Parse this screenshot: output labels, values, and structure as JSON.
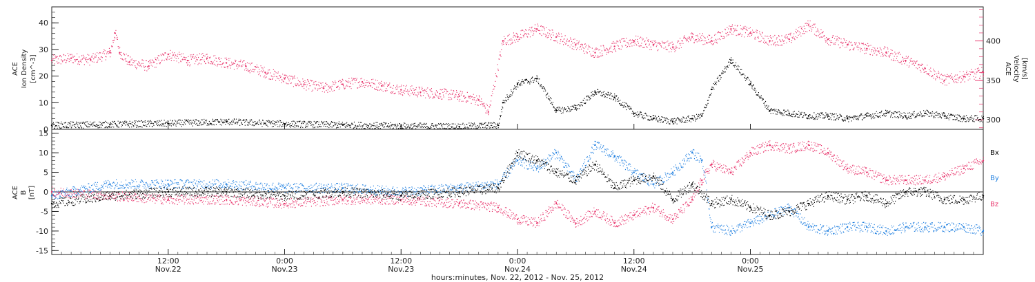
{
  "chart_data": [
    {
      "type": "scatter",
      "panel": "top",
      "ylabel_left": [
        "ACE",
        "Ion Density",
        "[cm^-3]"
      ],
      "ylabel_right": [
        "ACE",
        "Velocity",
        "[km/s]"
      ],
      "ylim_left": [
        0,
        46
      ],
      "ylim_right": [
        288,
        443
      ],
      "yticks_left": [
        "0",
        "10",
        "20",
        "30",
        "40"
      ],
      "yticks_right": [
        "300",
        "350",
        "400"
      ],
      "xlim_hours": [
        0,
        96
      ],
      "series": [
        {
          "axis": "left",
          "color": "#000000",
          "x": [
            0,
            6,
            12,
            18,
            24,
            30,
            36,
            42,
            46,
            46.5,
            48,
            50,
            52,
            54,
            56,
            58,
            60,
            62,
            64,
            66,
            67,
            68,
            70,
            72,
            74,
            76,
            78,
            80,
            82,
            84,
            86,
            88,
            90,
            92,
            94,
            96
          ],
          "values": [
            1.5,
            1.8,
            2.2,
            2.8,
            2.0,
            1.6,
            1.2,
            1.0,
            1.5,
            10,
            17,
            19,
            7,
            8,
            14,
            12,
            6,
            4,
            3,
            4,
            5,
            15,
            26,
            17,
            7,
            6,
            5,
            5,
            4,
            5,
            6,
            5,
            6,
            5,
            4,
            4
          ]
        },
        {
          "axis": "right",
          "color": "#e8336b",
          "x": [
            0,
            2,
            4,
            6,
            6.5,
            7,
            8,
            10,
            12,
            14,
            16,
            18,
            20,
            22,
            24,
            26,
            28,
            30,
            32,
            34,
            36,
            38,
            40,
            42,
            44,
            45,
            46.5,
            48,
            50,
            52,
            54,
            56,
            58,
            60,
            62,
            64,
            66,
            68,
            70,
            72,
            74,
            76,
            78,
            80,
            82,
            84,
            86,
            88,
            90,
            92,
            94,
            96
          ],
          "values": [
            375,
            378,
            376,
            385,
            410,
            385,
            373,
            368,
            383,
            375,
            378,
            372,
            368,
            360,
            352,
            345,
            340,
            345,
            348,
            343,
            338,
            335,
            333,
            330,
            325,
            310,
            400,
            405,
            415,
            405,
            395,
            385,
            393,
            400,
            395,
            392,
            405,
            400,
            415,
            410,
            400,
            402,
            420,
            402,
            395,
            390,
            385,
            375,
            365,
            350,
            355,
            360
          ]
        }
      ]
    },
    {
      "type": "scatter",
      "panel": "bottom",
      "ylabel_left": [
        "ACE",
        "B",
        "[nT]"
      ],
      "ylim": [
        -16,
        16
      ],
      "yticks": [
        "-15",
        "-10",
        "-5",
        "0",
        "5",
        "10",
        "15"
      ],
      "xlim_hours": [
        0,
        96
      ],
      "series": [
        {
          "name": "Bx",
          "color": "#000000",
          "x": [
            0,
            6,
            12,
            18,
            24,
            30,
            36,
            42,
            46,
            48,
            50,
            52,
            54,
            56,
            58,
            60,
            62,
            64,
            66,
            68,
            70,
            72,
            74,
            76,
            78,
            80,
            82,
            84,
            86,
            88,
            90,
            92,
            94,
            96
          ],
          "values": [
            -3,
            -1,
            0,
            0,
            -1,
            0,
            -1,
            0,
            1,
            10,
            8,
            5,
            3,
            7,
            1,
            3,
            4,
            -2,
            2,
            -3,
            -2,
            -4,
            -6,
            -5,
            -3,
            -1,
            -2,
            -1,
            -3,
            0,
            0,
            -2,
            -2,
            -1
          ]
        },
        {
          "name": "By",
          "color": "#1f7fe0",
          "x": [
            0,
            6,
            12,
            18,
            24,
            30,
            36,
            42,
            46,
            48,
            50,
            52,
            54,
            56,
            58,
            60,
            62,
            64,
            66,
            67,
            68,
            70,
            72,
            74,
            76,
            78,
            80,
            82,
            84,
            86,
            88,
            90,
            92,
            94,
            96
          ],
          "values": [
            -1,
            2,
            2,
            2,
            1,
            1,
            0,
            1,
            2,
            8,
            6,
            10,
            3,
            12,
            9,
            5,
            2,
            5,
            10,
            8,
            -9,
            -10,
            -8,
            -6,
            -4,
            -9,
            -10,
            -9,
            -9,
            -10,
            -9,
            -9,
            -9,
            -9,
            -10
          ]
        },
        {
          "name": "Bz",
          "color": "#e8336b",
          "x": [
            0,
            6,
            12,
            18,
            24,
            30,
            36,
            42,
            46,
            48,
            50,
            52,
            54,
            56,
            58,
            60,
            62,
            64,
            66,
            67,
            68,
            70,
            72,
            74,
            76,
            78,
            80,
            82,
            84,
            86,
            88,
            90,
            92,
            94,
            96
          ],
          "values": [
            0,
            -1,
            -2,
            -2,
            -3,
            -2,
            -2,
            -3,
            -4,
            -7,
            -8,
            -3,
            -8,
            -5,
            -8,
            -6,
            -4,
            -7,
            -2,
            3,
            7,
            5,
            10,
            12,
            11,
            12,
            10,
            6,
            5,
            3,
            3,
            3,
            4,
            6,
            8
          ]
        }
      ],
      "legend": [
        "Bx",
        "By",
        "Bz"
      ]
    }
  ],
  "x_axis": {
    "ticks": [
      {
        "hour": 12,
        "time": "12:00",
        "date": "Nov.22"
      },
      {
        "hour": 24,
        "time": "0:00",
        "date": "Nov.23"
      },
      {
        "hour": 36,
        "time": "12:00",
        "date": "Nov.23"
      },
      {
        "hour": 48,
        "time": "0:00",
        "date": "Nov.24"
      },
      {
        "hour": 60,
        "time": "12:00",
        "date": "Nov.24"
      },
      {
        "hour": 72,
        "time": "0:00",
        "date": "Nov.25"
      }
    ],
    "xlabel": "hours:minutes, Nov. 22, 2012 - Nov. 25, 2012"
  },
  "colors": {
    "black": "#000000",
    "pink": "#e8336b",
    "blue": "#1f7fe0"
  }
}
